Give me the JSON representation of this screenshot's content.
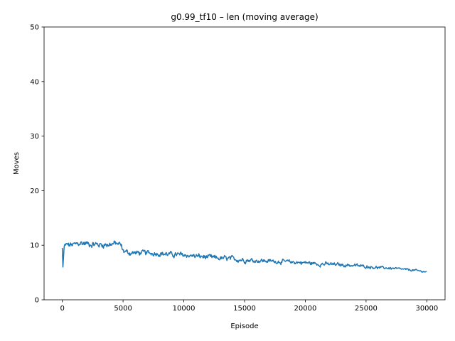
{
  "chart_data": {
    "type": "line",
    "title": "g0.99_tf10 – len (moving average)",
    "xlabel": "Episode",
    "ylabel": "Moves",
    "xlim": [
      -1500,
      31500
    ],
    "ylim": [
      0,
      50
    ],
    "xticks": [
      0,
      5000,
      10000,
      15000,
      20000,
      25000,
      30000
    ],
    "yticks": [
      0,
      10,
      20,
      30,
      40,
      50
    ],
    "grid": false,
    "legend": "none",
    "series": [
      {
        "color": "#1f77b4",
        "x": [
          0,
          50,
          150,
          300,
          500,
          1000,
          1500,
          2000,
          2500,
          3000,
          3500,
          4000,
          4500,
          4800,
          5000,
          5500,
          6000,
          7000,
          8000,
          9000,
          10000,
          11000,
          12000,
          13000,
          14000,
          15000,
          16000,
          17000,
          18000,
          19000,
          20000,
          21000,
          22000,
          23000,
          24000,
          25000,
          26000,
          27000,
          28000,
          29000,
          30000
        ],
        "values": [
          9.5,
          6.0,
          9.6,
          10.1,
          10.0,
          10.1,
          10.4,
          10.3,
          10.2,
          10.1,
          10.1,
          10.2,
          10.3,
          10.1,
          9.0,
          8.6,
          8.6,
          8.6,
          8.5,
          8.3,
          8.2,
          8.0,
          7.8,
          7.6,
          7.5,
          7.3,
          7.2,
          7.1,
          7.0,
          6.9,
          6.8,
          6.6,
          6.5,
          6.4,
          6.3,
          6.1,
          5.9,
          5.8,
          5.6,
          5.4,
          5.1
        ],
        "noise": [
          0.6,
          0.0,
          0.6,
          0.6,
          0.6,
          0.6,
          0.6,
          0.6,
          0.6,
          0.6,
          0.6,
          0.6,
          0.6,
          0.6,
          0.5,
          0.5,
          0.5,
          0.5,
          0.5,
          0.5,
          0.5,
          0.5,
          0.5,
          0.5,
          0.5,
          0.5,
          0.45,
          0.4,
          0.4,
          0.4,
          0.4,
          0.4,
          0.4,
          0.35,
          0.35,
          0.3,
          0.25,
          0.25,
          0.2,
          0.2,
          0.15
        ]
      }
    ]
  }
}
